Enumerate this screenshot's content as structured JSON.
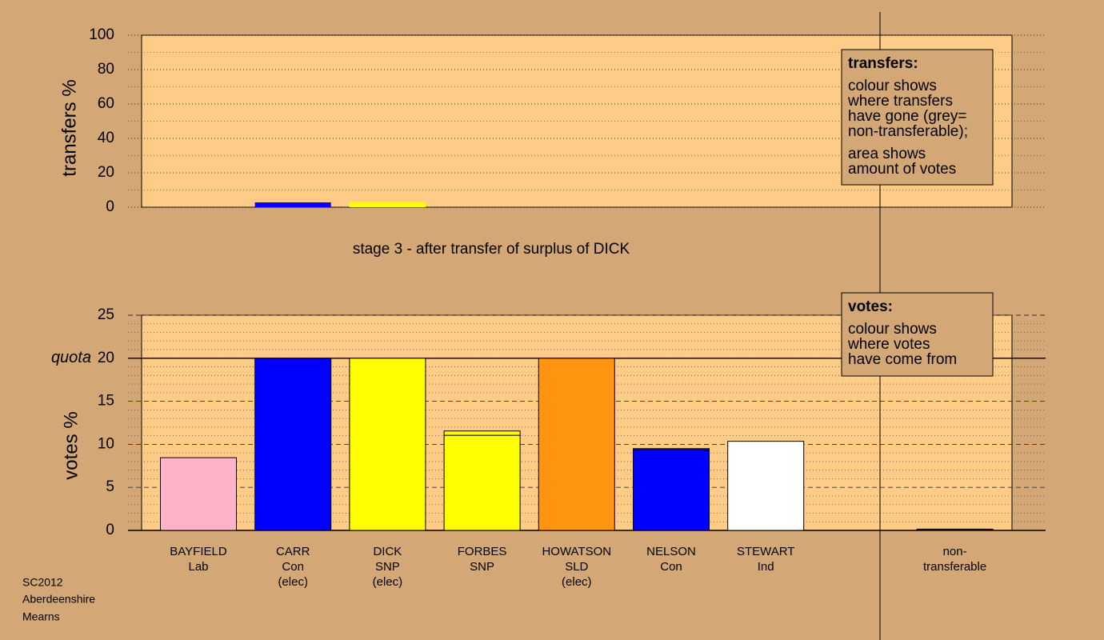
{
  "chart_data": [
    {
      "type": "bar",
      "ylabel": "transfers %",
      "ylim": [
        0,
        100
      ],
      "yticks": [
        0,
        20,
        40,
        60,
        80,
        100
      ],
      "minor_yticks": [
        10,
        30,
        50,
        70,
        90
      ],
      "major_grid": "dotted",
      "bars": [
        [],
        [
          {
            "value": 2.8,
            "color": "#0000ff"
          }
        ],
        [
          {
            "value": 3,
            "color": "#ffff00"
          }
        ],
        [],
        [],
        [],
        [],
        [],
        []
      ],
      "legend": {
        "title": "transfers:",
        "paragraphs": [
          [
            "colour shows",
            "where transfers",
            "have gone (grey=",
            "non-transferable);"
          ],
          [
            "area shows",
            "amount of votes"
          ]
        ]
      }
    },
    {
      "type": "bar",
      "title": "stage 3 - after transfer of surplus of DICK",
      "ylabel": "votes %",
      "ylim": [
        0,
        25
      ],
      "yticks": [
        0,
        5,
        10,
        15,
        20,
        25
      ],
      "minor_yticks": [
        1,
        2,
        3,
        4,
        6,
        7,
        8,
        9,
        11,
        12,
        13,
        14,
        16,
        17,
        18,
        19,
        21,
        22,
        23,
        24
      ],
      "major_grid": "dashed",
      "quota": {
        "label": "quota",
        "value": 20
      },
      "categories": [
        [
          "BAYFIELD",
          "Lab"
        ],
        [
          "CARR",
          "Con",
          "(elec)"
        ],
        [
          "DICK",
          "SNP",
          "(elec)"
        ],
        [
          "FORBES",
          "SNP"
        ],
        [
          "HOWATSON",
          "SLD",
          "(elec)"
        ],
        [
          "NELSON",
          "Con"
        ],
        [
          "STEWART",
          "Ind"
        ],
        null,
        [
          "non-",
          "transferable"
        ]
      ],
      "bars": [
        [
          {
            "value": 8.45,
            "color": "#ffb3c6"
          }
        ],
        [
          {
            "value": 20,
            "color": "#0000ff"
          }
        ],
        [
          {
            "value": 20,
            "color": "#ffff00"
          }
        ],
        [
          {
            "value": 11.05,
            "color": "#ffff00"
          },
          {
            "value": 0.5,
            "color": "#ffff00"
          }
        ],
        [
          {
            "value": 20,
            "color": "#ff9410"
          }
        ],
        [
          {
            "value": 9.25,
            "color": "#0000ff"
          },
          {
            "value": 0.25,
            "color": "#0000bb"
          }
        ],
        [
          {
            "value": 10.35,
            "color": "#ffffff"
          }
        ],
        [],
        [
          {
            "value": 0.15,
            "color": "#333333"
          }
        ]
      ],
      "legend": {
        "title": "votes:",
        "paragraphs": [
          [
            "colour shows",
            "where votes",
            "have come from"
          ]
        ]
      }
    }
  ],
  "footer": [
    "SC2012",
    "Aberdeenshire",
    "Mearns"
  ]
}
